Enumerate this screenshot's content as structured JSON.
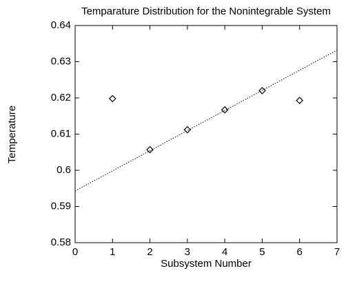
{
  "chart_data": {
    "type": "scatter",
    "title": "Temparature Distribution for the Nonintegrable System",
    "xlabel": "Subsystem Number",
    "ylabel": "Temperature",
    "xlim": [
      0,
      7
    ],
    "xticks": [
      0,
      1,
      2,
      3,
      4,
      5,
      6,
      7
    ],
    "ylim": [
      0.58,
      0.64
    ],
    "yticks": [
      0.58,
      0.59,
      {
        "value": 0.6,
        "label": "0.6"
      },
      0.61,
      0.62,
      0.63,
      0.64
    ],
    "series": [
      {
        "type": "scatter",
        "color": "#000000",
        "x": [
          1,
          2,
          3,
          4,
          5,
          6
        ],
        "values": [
          0.6198,
          0.6057,
          0.6112,
          0.6167,
          0.622,
          0.6193
        ]
      },
      {
        "type": "line",
        "color": "#000000",
        "x": [
          0,
          7
        ],
        "values": [
          0.5943,
          0.6332
        ]
      }
    ]
  }
}
